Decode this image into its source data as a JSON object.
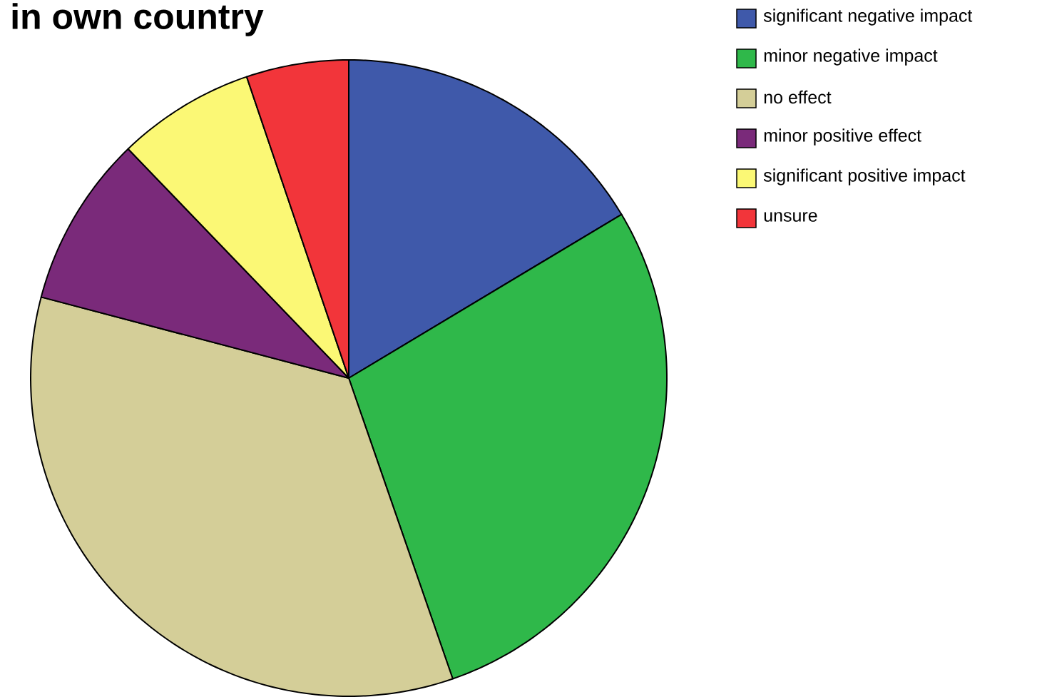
{
  "chart_data": {
    "type": "pie",
    "title": "in own country",
    "categories": [
      "significant negative impact",
      "minor negative impact",
      "no effect",
      "minor positive effect",
      "significant positive impact",
      "unsure"
    ],
    "values": [
      16.4,
      28.3,
      34.4,
      8.7,
      7.0,
      5.2
    ],
    "colors": [
      "#3f59aa",
      "#2fb84a",
      "#d4ce98",
      "#7a2a7a",
      "#fbf875",
      "#f2353a"
    ],
    "legend": "top right"
  }
}
